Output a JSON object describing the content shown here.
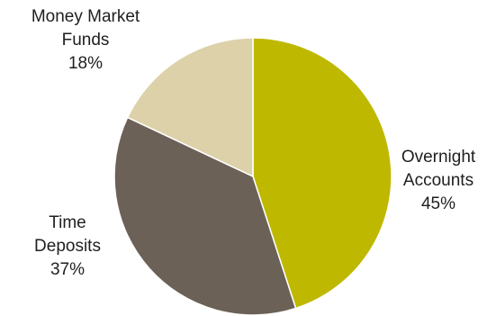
{
  "chart_data": {
    "type": "pie",
    "slices": [
      {
        "label_lines": [
          "Overnight",
          "Accounts"
        ],
        "percent_label": "45%",
        "value": 45,
        "color": "#bfb800"
      },
      {
        "label_lines": [
          "Time",
          "Deposits"
        ],
        "percent_label": "37%",
        "value": 37,
        "color": "#6b6157"
      },
      {
        "label_lines": [
          "Money Market",
          "Funds"
        ],
        "percent_label": "18%",
        "value": 18,
        "color": "#ddd1aa"
      }
    ],
    "start_angle_deg": 0,
    "direction": "clockwise",
    "legend": "none",
    "slice_separator_color": "#ffffff"
  }
}
